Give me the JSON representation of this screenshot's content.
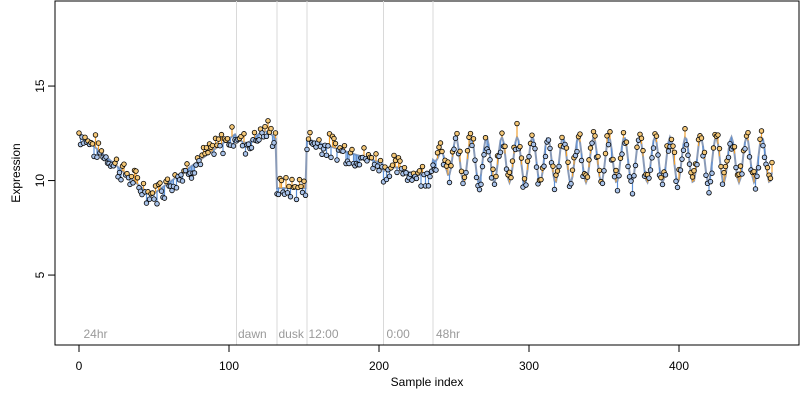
{
  "chart_data": {
    "type": "scatter",
    "title": "",
    "xlabel": "Sample index",
    "ylabel": "Expression",
    "xlim": [
      -16,
      480
    ],
    "ylim": [
      1.3,
      19.5
    ],
    "xticks": [
      0,
      100,
      200,
      300,
      400
    ],
    "yticks": [
      5,
      10,
      15
    ],
    "grid": false,
    "legend": "none",
    "colors": {
      "fit_line": "#8a9bb8",
      "residual_above": "#f0a030",
      "residual_below": "#5b8fd6",
      "marker_fill_above": "#f5c878",
      "marker_fill_below": "#a9c3ea",
      "boundary_line": "#d9d9d9",
      "annotation_text": "#9a9a9a"
    },
    "annotations": [
      {
        "text": "24hr",
        "x": 3
      },
      {
        "text": "dawn",
        "x": 106
      },
      {
        "text": "dusk",
        "x": 133
      },
      {
        "text": "12:00",
        "x": 153
      },
      {
        "text": "0:00",
        "x": 205
      },
      {
        "text": "48hr",
        "x": 238
      }
    ],
    "boundaries": [
      105,
      132,
      152,
      203,
      236
    ],
    "series": [
      {
        "name": "",
        "kind": "fitted_curve",
        "description": "smooth fit through the points, with residual segments from each point to the curve"
      },
      {
        "name": "",
        "kind": "observations",
        "description": "one open circle per sample, x = sample index 0–462"
      }
    ]
  }
}
